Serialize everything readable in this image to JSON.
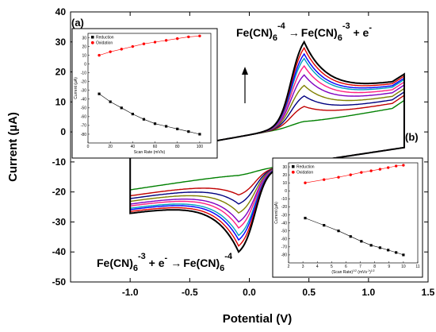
{
  "chart_data": [
    {
      "type": "line",
      "xlabel": "Potential (V)",
      "ylabel": "Current (µA)",
      "xlim": [
        -1.5,
        1.5
      ],
      "ylim": [
        -50,
        40
      ],
      "x_ticks": [
        "-1.0",
        "-0.5",
        "0.0",
        "0.5",
        "1.0",
        "1.5"
      ],
      "y_ticks": [
        "40",
        "30",
        "20",
        "10",
        "0",
        "-10",
        "-20",
        "-30",
        "-40",
        "-50"
      ],
      "series": [
        {
          "color": "#008000",
          "ipa": 3.5,
          "ipc": -14.5
        },
        {
          "color": "#c00000",
          "ipa": 8.5,
          "ipc": -21
        },
        {
          "color": "#000080",
          "ipa": 12,
          "ipc": -24
        },
        {
          "color": "#808000",
          "ipa": 15.5,
          "ipc": -27
        },
        {
          "color": "#8000c0",
          "ipa": 19,
          "ipc": -30
        },
        {
          "color": "#ff2080",
          "ipa": 22,
          "ipc": -32
        },
        {
          "color": "#00a0c0",
          "ipa": 24.5,
          "ipc": -34.5
        },
        {
          "color": "#0000ff",
          "ipa": 26,
          "ipc": -36
        },
        {
          "color": "#e00000",
          "ipa": 28,
          "ipc": -38
        },
        {
          "color": "#000000",
          "ipa": 30,
          "ipc": -40
        }
      ],
      "annotations": {
        "oxidation": {
          "pre": "Fe(CN)",
          "sub": "6",
          "sup": "-4",
          "arrow": "→",
          "post": "Fe(CN)",
          "sub2": "6",
          "sup2": "-3",
          "tail": " + e",
          "sup3": "-"
        },
        "reduction": {
          "pre": "Fe(CN)",
          "sub": "6",
          "sup": "-3",
          "mid": " + e",
          "sup2": "-",
          "arrow": "→",
          "post": "Fe(CN)",
          "sub2": "6",
          "sup3": "-4"
        },
        "label_a": "(a)",
        "label_b": "(b)"
      }
    },
    {
      "type": "scatter",
      "xlabel": "Scan Rate (mV/s)",
      "ylabel": "Current (µA)",
      "xlim": [
        0,
        110
      ],
      "ylim": [
        -90,
        35
      ],
      "x_ticks": [
        "0",
        "20",
        "40",
        "60",
        "80",
        "100"
      ],
      "y_ticks": [
        "30",
        "20",
        "10",
        "0",
        "-10",
        "-20",
        "-30",
        "-40",
        "-50",
        "-60",
        "-70",
        "-80"
      ],
      "legend": [
        {
          "name": "Reduction",
          "color": "#000000",
          "marker": "square"
        },
        {
          "name": "Oxidation",
          "color": "#ff0000",
          "marker": "circle"
        }
      ],
      "series": [
        {
          "name": "Reduction",
          "x": [
            10,
            20,
            30,
            40,
            50,
            60,
            70,
            80,
            90,
            100
          ],
          "y": [
            -34,
            -43,
            -50,
            -57,
            -63,
            -68,
            -71,
            -74,
            -77,
            -80
          ]
        },
        {
          "name": "Oxidation",
          "x": [
            10,
            20,
            30,
            40,
            50,
            60,
            70,
            80,
            90,
            100
          ],
          "y": [
            10,
            14,
            17,
            20,
            23,
            25,
            27,
            29,
            31,
            32
          ]
        }
      ]
    },
    {
      "type": "scatter",
      "xlabel": "(Scan Rate)",
      "xlabel_sup": "1/2",
      "xlabel_mid": " (mVs",
      "xlabel_sup2": "-1",
      "xlabel_end": ")",
      "xlabel_sup3": "1/2",
      "ylabel": "Current (µA)",
      "xlim": [
        2,
        11
      ],
      "ylim": [
        -90,
        35
      ],
      "x_ticks": [
        "2",
        "3",
        "4",
        "5",
        "6",
        "7",
        "8",
        "9",
        "10",
        "11"
      ],
      "y_ticks": [
        "30",
        "20",
        "10",
        "0",
        "-10",
        "-20",
        "-30",
        "-40",
        "-50",
        "-60",
        "-70",
        "-80"
      ],
      "legend": [
        {
          "name": "Reduction",
          "color": "#000000",
          "marker": "square"
        },
        {
          "name": "Oxidation",
          "color": "#ff0000",
          "marker": "circle"
        }
      ],
      "series": [
        {
          "name": "Reduction",
          "x": [
            3.16,
            4.47,
            5.48,
            6.32,
            7.07,
            7.75,
            8.37,
            8.94,
            9.49,
            10
          ],
          "y": [
            -34,
            -43,
            -50,
            -57,
            -63,
            -68,
            -71,
            -74,
            -77,
            -80
          ]
        },
        {
          "name": "Oxidation",
          "x": [
            3.16,
            4.47,
            5.48,
            6.32,
            7.07,
            7.75,
            8.37,
            8.94,
            9.49,
            10
          ],
          "y": [
            10,
            14,
            17,
            20,
            23,
            25,
            27,
            29,
            31,
            32
          ]
        }
      ]
    }
  ]
}
